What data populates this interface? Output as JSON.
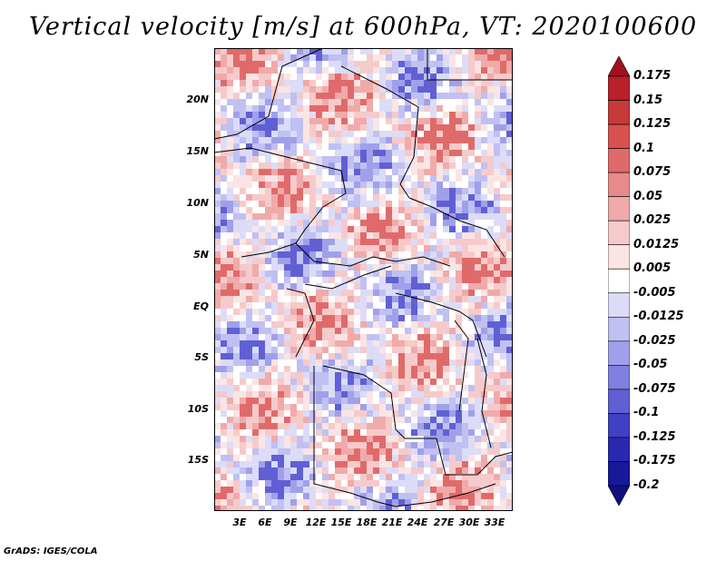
{
  "title": "Vertical velocity [m/s] at 600hPa, VT: 2020100600",
  "footer": "GrADS: IGES/COLA",
  "lat_labels": [
    "20N",
    "15N",
    "10N",
    "5N",
    "EQ",
    "5S",
    "10S",
    "15S"
  ],
  "lon_labels": [
    "3E",
    "6E",
    "9E",
    "12E",
    "15E",
    "18E",
    "21E",
    "24E",
    "27E",
    "30E",
    "33E"
  ],
  "colorbar": {
    "levels": [
      "0.175",
      "0.15",
      "0.125",
      "0.1",
      "0.075",
      "0.05",
      "0.025",
      "0.0125",
      "0.005",
      "-0.005",
      "-0.0125",
      "-0.025",
      "-0.05",
      "-0.075",
      "-0.1",
      "-0.125",
      "-0.175",
      "-0.2"
    ],
    "colors": [
      "#a01020",
      "#b8202a",
      "#c83a3a",
      "#d85050",
      "#e06a6a",
      "#e88a8a",
      "#f0aaaa",
      "#f6caca",
      "#fbe4e4",
      "#ffffff",
      "#dcdcf8",
      "#c0c0f2",
      "#a0a0ea",
      "#8080e0",
      "#6060d4",
      "#4040c4",
      "#2828b0",
      "#18189a",
      "#101080"
    ]
  }
}
